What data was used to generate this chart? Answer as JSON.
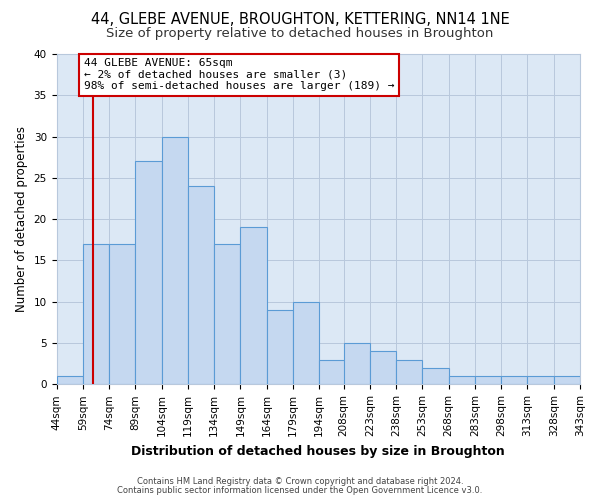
{
  "title": "44, GLEBE AVENUE, BROUGHTON, KETTERING, NN14 1NE",
  "subtitle": "Size of property relative to detached houses in Broughton",
  "xlabel": "Distribution of detached houses by size in Broughton",
  "ylabel": "Number of detached properties",
  "bin_labels": [
    "44sqm",
    "59sqm",
    "74sqm",
    "89sqm",
    "104sqm",
    "119sqm",
    "134sqm",
    "149sqm",
    "164sqm",
    "179sqm",
    "194sqm",
    "208sqm",
    "223sqm",
    "238sqm",
    "253sqm",
    "268sqm",
    "283sqm",
    "298sqm",
    "313sqm",
    "328sqm",
    "343sqm"
  ],
  "bar_values": [
    1,
    17,
    17,
    27,
    30,
    24,
    17,
    19,
    9,
    10,
    3,
    5,
    4,
    3,
    2,
    1,
    1,
    1,
    1,
    1
  ],
  "bin_edges": [
    44,
    59,
    74,
    89,
    104,
    119,
    134,
    149,
    164,
    179,
    194,
    208,
    223,
    238,
    253,
    268,
    283,
    298,
    313,
    328,
    343
  ],
  "bar_color": "#c5d8f0",
  "bar_edge_color": "#5b9bd5",
  "property_value": 65,
  "property_line_color": "#cc0000",
  "annotation_line1": "44 GLEBE AVENUE: 65sqm",
  "annotation_line2": "← 2% of detached houses are smaller (3)",
  "annotation_line3": "98% of semi-detached houses are larger (189) →",
  "annotation_box_color": "#ffffff",
  "annotation_box_edge_color": "#cc0000",
  "ylim": [
    0,
    40
  ],
  "yticks": [
    0,
    5,
    10,
    15,
    20,
    25,
    30,
    35,
    40
  ],
  "fig_bg_color": "#ffffff",
  "plot_bg_color": "#dce8f5",
  "grid_color": "#b8c8dc",
  "footer_line1": "Contains HM Land Registry data © Crown copyright and database right 2024.",
  "footer_line2": "Contains public sector information licensed under the Open Government Licence v3.0.",
  "title_fontsize": 10.5,
  "subtitle_fontsize": 9.5,
  "xlabel_fontsize": 9,
  "ylabel_fontsize": 8.5,
  "tick_fontsize": 7.5,
  "annot_fontsize": 8,
  "footer_fontsize": 6
}
